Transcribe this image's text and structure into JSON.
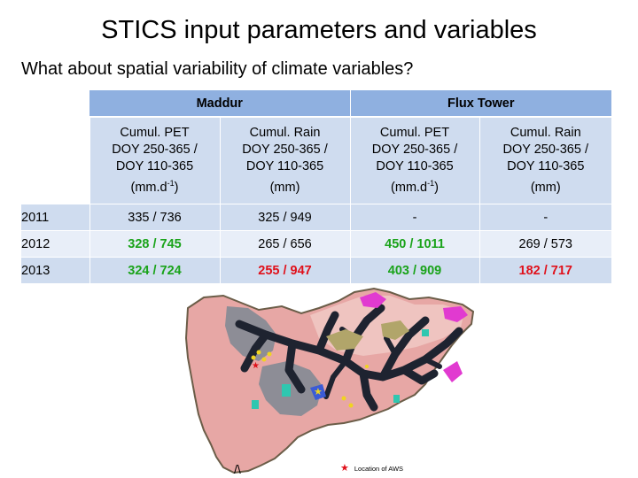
{
  "title": "STICS input parameters and variables",
  "subtitle": "What about spatial variability of climate variables?",
  "table": {
    "groups": [
      "Maddur",
      "Flux Tower"
    ],
    "columns": [
      {
        "l1": "Cumul. PET",
        "l2": "DOY 250-365 /",
        "l3": "DOY 110-365",
        "l4a": "(mm.d",
        "sup": "-1",
        "l4b": ")"
      },
      {
        "l1": "Cumul. Rain",
        "l2": "DOY 250-365 /",
        "l3": "DOY 110-365",
        "l4a": "(mm)",
        "sup": "",
        "l4b": ""
      },
      {
        "l1": "Cumul. PET",
        "l2": "DOY 250-365 /",
        "l3": "DOY 110-365",
        "l4a": "(mm.d",
        "sup": "-1",
        "l4b": ")"
      },
      {
        "l1": "Cumul. Rain",
        "l2": "DOY 250-365 /",
        "l3": "DOY 110-365",
        "l4a": "(mm)",
        "sup": "",
        "l4b": ""
      }
    ],
    "rows": [
      {
        "year": "2011",
        "cells": [
          "335 / 736",
          "325 / 949",
          "-",
          "-"
        ],
        "colors": [
          "plain",
          "plain",
          "plain",
          "plain"
        ]
      },
      {
        "year": "2012",
        "cells": [
          "328 / 745",
          "265 / 656",
          "450 / 1011",
          "269 / 573"
        ],
        "colors": [
          "green",
          "plain",
          "green",
          "plain"
        ]
      },
      {
        "year": "2013",
        "cells": [
          "324 / 724",
          "255 / 947",
          "403 / 909",
          "182 / 717"
        ],
        "colors": [
          "green",
          "red",
          "green",
          "red"
        ]
      }
    ]
  },
  "map": {
    "legend_label": "Location of AWS",
    "north_arrow": "/\\",
    "colors": {
      "outline": "#6b5d48",
      "base_pink": "#e7a7a5",
      "light_pink": "#efc4c0",
      "grey": "#8d8d96",
      "dark": "#1e2330",
      "magenta": "#e13ad0",
      "teal": "#2fc7b0",
      "olive": "#b1a56a",
      "blue": "#3b5bd6",
      "yellow": "#f0d420",
      "star_red": "#e0101a"
    }
  }
}
